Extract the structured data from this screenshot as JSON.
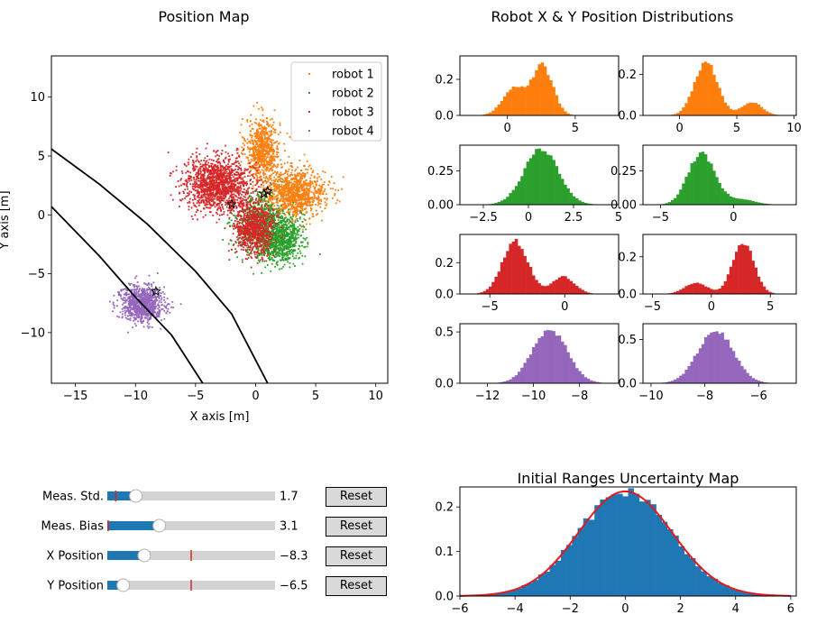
{
  "titles": {
    "position_map": "Position Map",
    "distributions": "Robot X & Y Position Distributions",
    "uncertainty": "Initial Ranges Uncertainty Map"
  },
  "colors": {
    "robot1": "#ff7f0e",
    "robot2": "#2ca02c",
    "robot3": "#d62728",
    "robot4": "#9467bd",
    "hist": "#1f77b4",
    "fit": "#e41a1c",
    "boundary": "#000000",
    "slider_fill": "#1f77b4",
    "slider_track": "#d3d3d3",
    "slider_marker": "#d62728"
  },
  "chart_data": [
    {
      "id": "position-map",
      "type": "scatter",
      "title": "Position Map",
      "xlabel": "X axis [m]",
      "ylabel": "Y axis [m]",
      "xlim": [
        -17,
        11
      ],
      "ylim": [
        -14.3,
        13.5
      ],
      "xticks": [
        -15,
        -10,
        -5,
        0,
        5,
        10
      ],
      "yticks": [
        -10,
        -5,
        0,
        5,
        10
      ],
      "legend": {
        "placement": "top-right",
        "entries": [
          "robot 1",
          "robot 2",
          "robot 3",
          "robot 4"
        ]
      },
      "series": [
        {
          "name": "robot 1",
          "color_key": "robot1",
          "clusters": [
            {
              "cx": 0.6,
              "cy": 5.6,
              "sx": 0.7,
              "sy": 1.3,
              "n": 700
            },
            {
              "cx": 3.2,
              "cy": 1.8,
              "sx": 1.3,
              "sy": 1.0,
              "n": 1100
            }
          ],
          "marker": [
            1.0,
            2.0
          ]
        },
        {
          "name": "robot 2",
          "color_key": "robot2",
          "clusters": [
            {
              "cx": 0.3,
              "cy": -0.8,
              "sx": 1.0,
              "sy": 1.3,
              "n": 600
            },
            {
              "cx": 2.0,
              "cy": -2.0,
              "sx": 0.9,
              "sy": 1.0,
              "n": 900
            }
          ],
          "marker": [
            0.7,
            1.8
          ]
        },
        {
          "name": "robot 3",
          "color_key": "robot3",
          "clusters": [
            {
              "cx": -3.1,
              "cy": 2.6,
              "sx": 1.4,
              "sy": 1.1,
              "n": 1400
            },
            {
              "cx": -0.1,
              "cy": -1.2,
              "sx": 0.8,
              "sy": 1.1,
              "n": 800
            }
          ],
          "marker": [
            -2.0,
            0.9
          ]
        },
        {
          "name": "robot 4",
          "color_key": "robot4",
          "clusters": [
            {
              "cx": -9.5,
              "cy": -7.6,
              "sx": 0.9,
              "sy": 0.75,
              "n": 900
            }
          ],
          "marker": [
            -8.3,
            -6.5
          ]
        }
      ],
      "boundaries": [
        {
          "name": "outer-boundary",
          "points": [
            [
              -17,
              5.6
            ],
            [
              -13,
              2.6
            ],
            [
              -9,
              -0.8
            ],
            [
              -5,
              -4.8
            ],
            [
              -2,
              -8.4
            ],
            [
              1,
              -14.3
            ]
          ]
        },
        {
          "name": "inner-boundary",
          "points": [
            [
              -17,
              0.7
            ],
            [
              -13,
              -3.5
            ],
            [
              -10,
              -7.0
            ],
            [
              -7,
              -10.2
            ],
            [
              -4.4,
              -14.3
            ]
          ]
        }
      ]
    },
    {
      "id": "hist-r1-x",
      "type": "bar",
      "color_key": "robot1",
      "xlim": [
        -3.5,
        8.2
      ],
      "ylim": [
        0,
        0.33
      ],
      "xticks": [
        0,
        5
      ],
      "yticks": [
        0,
        0.2
      ],
      "ytick_labels": [
        "0.0",
        "0.2"
      ],
      "peaks": [
        {
          "mu": 0.5,
          "sigma": 0.85,
          "h": 0.15
        },
        {
          "mu": 2.6,
          "sigma": 0.75,
          "h": 0.27
        }
      ]
    },
    {
      "id": "hist-r1-y",
      "type": "bar",
      "color_key": "robot1",
      "xlim": [
        -3.2,
        10.2
      ],
      "ylim": [
        0,
        0.29
      ],
      "xticks": [
        0,
        5,
        10
      ],
      "yticks": [
        0,
        0.2
      ],
      "ytick_labels": [
        "0.0",
        "0.2"
      ],
      "peaks": [
        {
          "mu": 2.3,
          "sigma": 1.0,
          "h": 0.26
        },
        {
          "mu": 6.3,
          "sigma": 0.9,
          "h": 0.065
        }
      ]
    },
    {
      "id": "hist-r2-x",
      "type": "bar",
      "color_key": "robot2",
      "xlim": [
        -3.8,
        5.0
      ],
      "ylim": [
        0,
        0.44
      ],
      "xticks": [
        -2.5,
        0.0,
        2.5,
        5.0
      ],
      "yticks": [
        0,
        0.25
      ],
      "ytick_labels": [
        "0.00",
        "0.25"
      ],
      "peaks": [
        {
          "mu": 0.7,
          "sigma": 0.95,
          "h": 0.41
        }
      ]
    },
    {
      "id": "hist-r2-y",
      "type": "bar",
      "color_key": "robot2",
      "xlim": [
        -6.2,
        4.3
      ],
      "ylim": [
        0,
        0.44
      ],
      "xticks": [
        -5,
        0
      ],
      "yticks": [
        0,
        0.25
      ],
      "ytick_labels": [
        "0.00",
        "0.25"
      ],
      "peaks": [
        {
          "mu": -2.2,
          "sigma": 0.9,
          "h": 0.38
        },
        {
          "mu": 0.4,
          "sigma": 1.0,
          "h": 0.04
        }
      ]
    },
    {
      "id": "hist-r3-x",
      "type": "bar",
      "color_key": "robot3",
      "xlim": [
        -7.0,
        3.6
      ],
      "ylim": [
        0,
        0.38
      ],
      "xticks": [
        -5,
        0
      ],
      "yticks": [
        0,
        0.2
      ],
      "ytick_labels": [
        "0.0",
        "0.2"
      ],
      "peaks": [
        {
          "mu": -3.3,
          "sigma": 0.85,
          "h": 0.34
        },
        {
          "mu": -0.1,
          "sigma": 0.75,
          "h": 0.11
        }
      ]
    },
    {
      "id": "hist-r3-y",
      "type": "bar",
      "color_key": "robot3",
      "xlim": [
        -5.8,
        7.2
      ],
      "ylim": [
        0,
        0.32
      ],
      "xticks": [
        -5,
        0,
        5
      ],
      "yticks": [
        0,
        0.2
      ],
      "ytick_labels": [
        "0.0",
        "0.2"
      ],
      "peaks": [
        {
          "mu": 2.7,
          "sigma": 0.9,
          "h": 0.28
        },
        {
          "mu": -1.3,
          "sigma": 0.95,
          "h": 0.06
        }
      ]
    },
    {
      "id": "hist-r4-x",
      "type": "bar",
      "color_key": "robot4",
      "xlim": [
        -13.2,
        -6.3
      ],
      "ylim": [
        0,
        0.58
      ],
      "xticks": [
        -12,
        -10,
        -8
      ],
      "yticks": [
        0,
        0.5
      ],
      "ytick_labels": [
        "0.0",
        "0.5"
      ],
      "peaks": [
        {
          "mu": -9.3,
          "sigma": 0.75,
          "h": 0.53
        }
      ]
    },
    {
      "id": "hist-r4-y",
      "type": "bar",
      "color_key": "robot4",
      "xlim": [
        -10.3,
        -4.6
      ],
      "ylim": [
        0,
        0.68
      ],
      "xticks": [
        -10,
        -8,
        -6
      ],
      "yticks": [
        0,
        0.5
      ],
      "ytick_labels": [
        "0.0",
        "0.5"
      ],
      "peaks": [
        {
          "mu": -7.6,
          "sigma": 0.65,
          "h": 0.61
        }
      ]
    },
    {
      "id": "uncertainty",
      "type": "bar",
      "color_key": "hist",
      "title": "Initial Ranges Uncertainty Map",
      "xlim": [
        -6,
        6.2
      ],
      "ylim": [
        0,
        0.245
      ],
      "xticks": [
        -6,
        -4,
        -2,
        0,
        2,
        4,
        6
      ],
      "yticks": [
        0,
        0.1,
        0.2
      ],
      "ytick_labels": [
        "0.0",
        "0.1",
        "0.2"
      ],
      "peaks": [
        {
          "mu": 0.0,
          "sigma": 1.7,
          "h": 0.235
        }
      ],
      "fit_curve": {
        "mu": 0.0,
        "sigma": 1.7,
        "h": 0.235
      }
    }
  ],
  "sliders": [
    {
      "key": "meas-std",
      "label": "Meas. Std.",
      "value_text": "1.7",
      "fraction": 0.17,
      "marker_fraction": 0.05
    },
    {
      "key": "meas-bias",
      "label": "Meas. Bias",
      "value_text": "3.1",
      "fraction": 0.31,
      "marker_fraction": 0.005
    },
    {
      "key": "x-position",
      "label": "X Position",
      "value_text": "−8.3",
      "fraction": 0.22,
      "marker_fraction": 0.5
    },
    {
      "key": "y-position",
      "label": "Y Position",
      "value_text": "−6.5",
      "fraction": 0.095,
      "marker_fraction": 0.5
    }
  ],
  "reset_label": "Reset"
}
